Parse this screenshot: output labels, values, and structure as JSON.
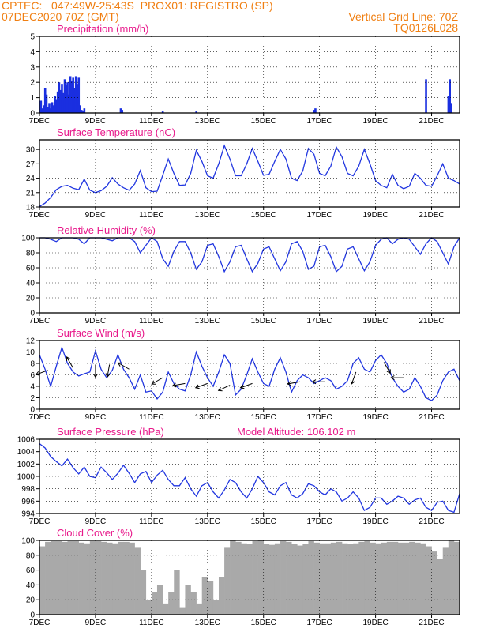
{
  "header": {
    "source": "CPTEC:",
    "coords": "047:49W-25:43S",
    "station": "PROX01: REGISTRO (SP)",
    "run": "07DEC2020 70Z (GMT)",
    "grid_line": "Vertical Grid Line: 70Z",
    "model": "TQ0126L028"
  },
  "model_altitude": "Model Altitude: 106.102 m",
  "x_axis": {
    "day_min": 7,
    "day_max": 22,
    "ticks": [
      "7DEC",
      "9DEC",
      "11DEC",
      "13DEC",
      "15DEC",
      "17DEC",
      "19DEC",
      "21DEC"
    ],
    "tick_days": [
      7,
      9,
      11,
      13,
      15,
      17,
      19,
      21
    ]
  },
  "colors": {
    "line": "#2136e0",
    "bar": "#1a2fe0",
    "cloud": "#a9a9a9",
    "title": "#e8198b",
    "header": "#f07f12"
  },
  "chart_data": [
    {
      "type": "bar",
      "title": "Precipitation (mm/h)",
      "ylim": [
        0,
        5
      ],
      "yticks": [
        0,
        1,
        2,
        3,
        4,
        5
      ],
      "x": [
        7.05,
        7.1,
        7.15,
        7.2,
        7.25,
        7.3,
        7.35,
        7.4,
        7.45,
        7.5,
        7.55,
        7.6,
        7.65,
        7.7,
        7.75,
        7.8,
        7.85,
        7.9,
        7.95,
        8.0,
        8.05,
        8.1,
        8.15,
        8.2,
        8.25,
        8.3,
        8.35,
        8.4,
        8.45,
        8.5,
        8.55,
        8.6,
        9.9,
        9.95,
        11.4,
        12.6,
        16.8,
        16.85,
        20.8,
        21.6,
        21.65,
        21.7
      ],
      "values": [
        0.8,
        0.3,
        0.5,
        1.6,
        1.2,
        0.4,
        0.6,
        0.3,
        0.7,
        0.5,
        1.1,
        0.9,
        1.4,
        2.0,
        1.5,
        1.9,
        1.3,
        2.2,
        1.8,
        2.0,
        1.2,
        2.4,
        2.1,
        2.3,
        1.6,
        2.4,
        1.9,
        2.3,
        0.5,
        0.2,
        0.1,
        0.3,
        0.3,
        0.2,
        0.1,
        0.1,
        0.2,
        0.3,
        2.2,
        1.1,
        2.2,
        0.6
      ]
    },
    {
      "type": "line",
      "title": "Surface Temperature (nC)",
      "ylim": [
        18,
        32
      ],
      "yticks": [
        18,
        21,
        24,
        27,
        30
      ],
      "x": [
        7.0,
        7.2,
        7.4,
        7.6,
        7.8,
        8.0,
        8.2,
        8.4,
        8.6,
        8.8,
        9.0,
        9.2,
        9.4,
        9.6,
        9.8,
        10.0,
        10.2,
        10.4,
        10.6,
        10.8,
        11.0,
        11.2,
        11.4,
        11.6,
        11.8,
        12.0,
        12.2,
        12.4,
        12.6,
        12.8,
        13.0,
        13.2,
        13.4,
        13.6,
        13.8,
        14.0,
        14.2,
        14.4,
        14.6,
        14.8,
        15.0,
        15.2,
        15.4,
        15.6,
        15.8,
        16.0,
        16.2,
        16.4,
        16.6,
        16.8,
        17.0,
        17.2,
        17.4,
        17.6,
        17.8,
        18.0,
        18.2,
        18.4,
        18.6,
        18.8,
        19.0,
        19.2,
        19.4,
        19.6,
        19.8,
        20.0,
        20.2,
        20.4,
        20.6,
        20.8,
        21.0,
        21.2,
        21.4,
        21.6,
        21.8,
        22.0
      ],
      "values": [
        18.1,
        18.8,
        20.0,
        21.6,
        22.3,
        22.5,
        21.9,
        21.6,
        23.8,
        21.5,
        21.0,
        21.4,
        22.3,
        24.1,
        22.8,
        22.0,
        21.5,
        22.8,
        25.6,
        22.0,
        21.2,
        21.3,
        24.6,
        28.0,
        25.0,
        22.5,
        22.6,
        25.0,
        29.8,
        27.5,
        24.5,
        24.0,
        27.0,
        30.8,
        28.0,
        24.5,
        24.5,
        27.0,
        30.2,
        27.5,
        24.6,
        24.8,
        27.5,
        30.0,
        28.0,
        24.0,
        23.5,
        25.5,
        30.2,
        29.0,
        25.0,
        24.5,
        26.5,
        30.5,
        28.5,
        25.0,
        24.5,
        26.5,
        30.0,
        27.0,
        23.5,
        22.5,
        22.0,
        24.8,
        22.5,
        21.8,
        22.3,
        25.0,
        24.0,
        22.5,
        22.3,
        24.5,
        27.0,
        24.0,
        23.5,
        22.8
      ]
    },
    {
      "type": "line",
      "title": "Relative Humidity (%)",
      "ylim": [
        0,
        100
      ],
      "yticks": [
        0,
        20,
        40,
        60,
        80,
        100
      ],
      "x": [
        7.0,
        7.2,
        7.4,
        7.6,
        7.8,
        8.0,
        8.2,
        8.4,
        8.6,
        8.8,
        9.0,
        9.2,
        9.4,
        9.6,
        9.8,
        10.0,
        10.2,
        10.4,
        10.6,
        10.8,
        11.0,
        11.2,
        11.4,
        11.6,
        11.8,
        12.0,
        12.2,
        12.4,
        12.6,
        12.8,
        13.0,
        13.2,
        13.4,
        13.6,
        13.8,
        14.0,
        14.2,
        14.4,
        14.6,
        14.8,
        15.0,
        15.2,
        15.4,
        15.6,
        15.8,
        16.0,
        16.2,
        16.4,
        16.6,
        16.8,
        17.0,
        17.2,
        17.4,
        17.6,
        17.8,
        18.0,
        18.2,
        18.4,
        18.6,
        18.8,
        19.0,
        19.2,
        19.4,
        19.6,
        19.8,
        20.0,
        20.2,
        20.4,
        20.6,
        20.8,
        21.0,
        21.2,
        21.4,
        21.6,
        21.8,
        22.0
      ],
      "values": [
        100,
        100,
        98,
        95,
        100,
        100,
        100,
        98,
        92,
        100,
        100,
        100,
        98,
        96,
        100,
        100,
        100,
        95,
        80,
        90,
        100,
        95,
        72,
        62,
        82,
        95,
        95,
        80,
        58,
        68,
        90,
        92,
        75,
        55,
        68,
        88,
        90,
        72,
        55,
        66,
        85,
        88,
        72,
        56,
        68,
        92,
        95,
        82,
        58,
        62,
        88,
        90,
        75,
        55,
        62,
        85,
        88,
        72,
        56,
        68,
        90,
        98,
        100,
        92,
        98,
        100,
        98,
        88,
        78,
        92,
        100,
        95,
        80,
        65,
        88,
        100
      ]
    },
    {
      "type": "line",
      "title": "Surface Wind (m/s)",
      "ylim": [
        0,
        12
      ],
      "yticks": [
        0,
        2,
        4,
        6,
        8,
        10,
        12
      ],
      "x": [
        7.0,
        7.2,
        7.4,
        7.6,
        7.8,
        8.0,
        8.2,
        8.4,
        8.6,
        8.8,
        9.0,
        9.2,
        9.4,
        9.6,
        9.8,
        10.0,
        10.2,
        10.4,
        10.6,
        10.8,
        11.0,
        11.2,
        11.4,
        11.6,
        11.8,
        12.0,
        12.2,
        12.4,
        12.6,
        12.8,
        13.0,
        13.2,
        13.4,
        13.6,
        13.8,
        14.0,
        14.2,
        14.4,
        14.6,
        14.8,
        15.0,
        15.2,
        15.4,
        15.6,
        15.8,
        16.0,
        16.2,
        16.4,
        16.6,
        16.8,
        17.0,
        17.2,
        17.4,
        17.6,
        17.8,
        18.0,
        18.2,
        18.4,
        18.6,
        18.8,
        19.0,
        19.2,
        19.4,
        19.6,
        19.8,
        20.0,
        20.2,
        20.4,
        20.6,
        20.8,
        21.0,
        21.2,
        21.4,
        21.6,
        21.8,
        22.0
      ],
      "values": [
        9.5,
        7.0,
        4.0,
        7.5,
        10.8,
        8.0,
        6.5,
        5.8,
        6.2,
        6.5,
        10.2,
        7.0,
        5.5,
        6.8,
        9.5,
        7.0,
        5.5,
        3.5,
        6.0,
        3.0,
        3.2,
        1.8,
        3.0,
        6.5,
        4.5,
        3.5,
        3.2,
        6.0,
        10.0,
        7.5,
        5.5,
        4.0,
        6.5,
        9.5,
        8.0,
        2.5,
        3.5,
        6.0,
        8.8,
        6.5,
        4.5,
        4.0,
        7.0,
        9.0,
        6.5,
        3.0,
        5.0,
        6.0,
        5.5,
        4.5,
        5.0,
        5.5,
        5.0,
        3.5,
        4.0,
        5.0,
        8.0,
        9.0,
        7.0,
        6.5,
        8.5,
        9.5,
        8.0,
        5.5,
        4.0,
        3.0,
        3.5,
        5.5,
        4.0,
        2.0,
        1.5,
        2.5,
        5.0,
        6.5,
        7.0,
        5.0
      ],
      "arrows": {
        "x": [
          7.3,
          8.2,
          9.0,
          9.5,
          10.2,
          11.4,
          12.2,
          13.0,
          13.8,
          14.6,
          16.3,
          17.2,
          18.3,
          19.3,
          20.0
        ],
        "values": [
          6.8,
          7.2,
          7.8,
          7.8,
          7.0,
          5.5,
          4.5,
          4.5,
          4.2,
          4.5,
          4.8,
          4.8,
          6.5,
          8.2,
          5.5
        ]
      }
    },
    {
      "type": "line",
      "title": "Surface Pressure (hPa)",
      "ylim": [
        994,
        1006
      ],
      "yticks": [
        994,
        996,
        998,
        1000,
        1002,
        1004,
        1006
      ],
      "x": [
        7.0,
        7.2,
        7.4,
        7.6,
        7.8,
        8.0,
        8.2,
        8.4,
        8.6,
        8.8,
        9.0,
        9.2,
        9.4,
        9.6,
        9.8,
        10.0,
        10.2,
        10.4,
        10.6,
        10.8,
        11.0,
        11.2,
        11.4,
        11.6,
        11.8,
        12.0,
        12.2,
        12.4,
        12.6,
        12.8,
        13.0,
        13.2,
        13.4,
        13.6,
        13.8,
        14.0,
        14.2,
        14.4,
        14.6,
        14.8,
        15.0,
        15.2,
        15.4,
        15.6,
        15.8,
        16.0,
        16.2,
        16.4,
        16.6,
        16.8,
        17.0,
        17.2,
        17.4,
        17.6,
        17.8,
        18.0,
        18.2,
        18.4,
        18.6,
        18.8,
        19.0,
        19.2,
        19.4,
        19.6,
        19.8,
        20.0,
        20.2,
        20.4,
        20.6,
        20.8,
        21.0,
        21.2,
        21.4,
        21.6,
        21.8,
        22.0
      ],
      "values": [
        1005.3,
        1004.6,
        1003.2,
        1002.4,
        1001.7,
        1002.8,
        1001.4,
        1000.4,
        1001.5,
        1000.0,
        999.8,
        1001.5,
        1000.6,
        999.5,
        1000.5,
        1001.8,
        1000.5,
        999.0,
        1000.4,
        1000.8,
        999.0,
        1000.2,
        1001.0,
        999.5,
        998.5,
        998.5,
        999.8,
        998.0,
        996.8,
        998.5,
        999.0,
        997.5,
        996.5,
        997.8,
        999.5,
        999.0,
        997.5,
        996.5,
        998.0,
        1000.0,
        999.0,
        997.5,
        997.0,
        998.5,
        999.0,
        997.0,
        996.5,
        997.2,
        998.8,
        998.5,
        997.5,
        997.0,
        998.0,
        997.5,
        996.0,
        996.5,
        997.5,
        996.5,
        994.5,
        995.0,
        996.5,
        996.5,
        995.5,
        996.0,
        996.8,
        996.5,
        995.5,
        996.2,
        996.5,
        995.0,
        994.5,
        995.8,
        996.0,
        994.5,
        994.2,
        997.2
      ]
    },
    {
      "type": "area",
      "title": "Cloud Cover (%)",
      "ylim": [
        0,
        100
      ],
      "yticks": [
        0,
        20,
        40,
        60,
        80,
        100
      ],
      "x": [
        7.0,
        7.2,
        7.4,
        7.6,
        7.8,
        8.0,
        8.2,
        8.4,
        8.6,
        8.8,
        9.0,
        9.2,
        9.4,
        9.6,
        9.8,
        10.0,
        10.2,
        10.4,
        10.6,
        10.8,
        11.0,
        11.2,
        11.4,
        11.6,
        11.8,
        12.0,
        12.2,
        12.4,
        12.6,
        12.8,
        13.0,
        13.2,
        13.4,
        13.6,
        13.8,
        14.0,
        14.2,
        14.4,
        14.6,
        14.8,
        15.0,
        15.2,
        15.4,
        15.6,
        15.8,
        16.0,
        16.2,
        16.4,
        16.6,
        16.8,
        17.0,
        17.2,
        17.4,
        17.6,
        17.8,
        18.0,
        18.2,
        18.4,
        18.6,
        18.8,
        19.0,
        19.2,
        19.4,
        19.6,
        19.8,
        20.0,
        20.2,
        20.4,
        20.6,
        20.8,
        21.0,
        21.2,
        21.4,
        21.6,
        21.8,
        22.0
      ],
      "values": [
        92,
        98,
        99,
        99,
        98,
        99,
        99,
        97,
        96,
        99,
        99,
        98,
        97,
        96,
        98,
        98,
        97,
        90,
        60,
        20,
        30,
        40,
        15,
        30,
        60,
        10,
        40,
        30,
        15,
        50,
        45,
        20,
        50,
        90,
        100,
        98,
        96,
        95,
        99,
        100,
        95,
        94,
        96,
        99,
        98,
        95,
        93,
        95,
        99,
        97,
        96,
        96,
        97,
        98,
        96,
        95,
        96,
        98,
        99,
        97,
        96,
        97,
        98,
        98,
        97,
        97,
        98,
        97,
        96,
        92,
        85,
        75,
        90,
        100,
        98,
        100
      ]
    }
  ]
}
